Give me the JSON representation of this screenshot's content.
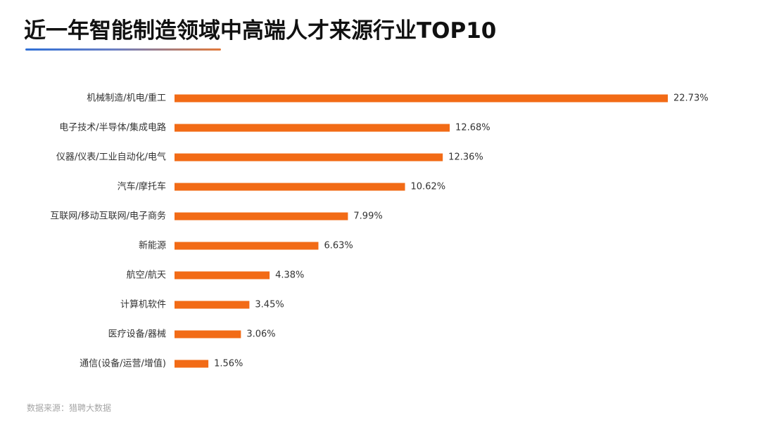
{
  "slide": {
    "title": "近一年智能制造领域中高端人才来源行业TOP10",
    "source": "数据来源：猎聘大数据"
  },
  "colors": {
    "bar": "#f26b16",
    "text": "#333333",
    "source_text": "#a6a6a6"
  },
  "chart_data": {
    "type": "bar",
    "orientation": "horizontal",
    "title": "近一年智能制造领域中高端人才来源行业TOP10",
    "xlabel": "",
    "ylabel": "",
    "grid": false,
    "categories": [
      "机械制造/机电/重工",
      "电子技术/半导体/集成电路",
      "仪器/仪表/工业自动化/电气",
      "汽车/摩托车",
      "互联网/移动互联网/电子商务",
      "新能源",
      "航空/航天",
      "计算机软件",
      "医疗设备/器械",
      "通信(设备/运营/增值)"
    ],
    "values": [
      22.73,
      12.68,
      12.36,
      10.62,
      7.99,
      6.63,
      4.38,
      3.45,
      3.06,
      1.56
    ],
    "value_labels": [
      "22.73%",
      "12.68%",
      "12.36%",
      "10.62%",
      "7.99%",
      "6.63%",
      "4.38%",
      "3.45%",
      "3.06%",
      "1.56%"
    ],
    "unit": "%"
  }
}
